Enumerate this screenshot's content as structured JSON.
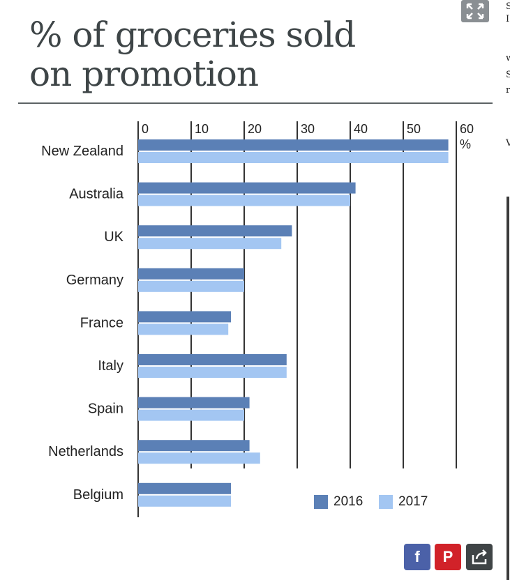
{
  "chart_data": {
    "type": "bar",
    "orientation": "horizontal",
    "title": "% of groceries sold on promotion",
    "title_lines": [
      "% of groceries sold",
      "on promotion"
    ],
    "categories": [
      "New Zealand",
      "Australia",
      "UK",
      "Germany",
      "France",
      "Italy",
      "Spain",
      "Netherlands",
      "Belgium"
    ],
    "series": [
      {
        "name": "2016",
        "color": "#5b80b6",
        "values": [
          58.5,
          41,
          29,
          20,
          17.5,
          28,
          21,
          21,
          17.5
        ]
      },
      {
        "name": "2017",
        "color": "#a3c6f2",
        "values": [
          58.5,
          40,
          27,
          20,
          17,
          28,
          20,
          23,
          17.5
        ]
      }
    ],
    "x_ticks": [
      "0",
      "10",
      "20",
      "30",
      "40",
      "50",
      "60"
    ],
    "x_unit": "%",
    "xlim": [
      0,
      60
    ],
    "grid": true,
    "legend_position": "bottom-right"
  },
  "legend": {
    "items": [
      "2016",
      "2017"
    ]
  },
  "share": {
    "facebook_icon": "f",
    "pinterest_icon": "P",
    "share_icon": "share-icon"
  },
  "side_strip": {
    "glyphs": [
      "S",
      "I",
      "w",
      "S",
      "r",
      "V"
    ]
  }
}
